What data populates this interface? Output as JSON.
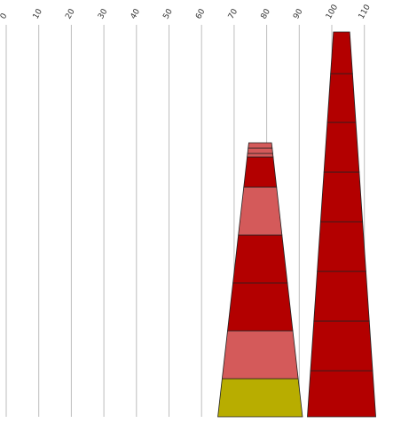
{
  "chart_data": {
    "type": "bar",
    "orientation": "vertical-stacked-tapered",
    "title": "",
    "xlabel": "",
    "ylabel": "",
    "axis": {
      "min": 0,
      "max": 110,
      "ticks": [
        0,
        10,
        20,
        30,
        40,
        50,
        60,
        70,
        80,
        90,
        100,
        110
      ],
      "tick_labels": [
        "0",
        "10",
        "20",
        "30",
        "40",
        "50",
        "60",
        "70",
        "80",
        "90",
        "100",
        "110"
      ],
      "grid": true
    },
    "colors": {
      "dark_red": "#b30000",
      "light_red": "#d45a5a",
      "olive": "#b8ad00",
      "grid": "#bdbdbd",
      "outline": "#222222"
    },
    "stacks": [
      {
        "center": 78,
        "base_width": 26,
        "top_width": 7,
        "segments": [
          {
            "value": 43,
            "color": "olive"
          },
          {
            "value": 54,
            "color": "light_red"
          },
          {
            "value": 54,
            "color": "dark_red"
          },
          {
            "value": 54,
            "color": "dark_red"
          },
          {
            "value": 54,
            "color": "light_red"
          },
          {
            "value": 34,
            "color": "dark_red"
          },
          {
            "value": 4,
            "color": "light_red"
          },
          {
            "value": 6,
            "color": "light_red"
          },
          {
            "value": 6,
            "color": "light_red"
          }
        ]
      },
      {
        "center": 103,
        "base_width": 21,
        "top_width": 5,
        "segments": [
          {
            "value": 52,
            "color": "dark_red"
          },
          {
            "value": 56,
            "color": "dark_red"
          },
          {
            "value": 56,
            "color": "dark_red"
          },
          {
            "value": 56,
            "color": "dark_red"
          },
          {
            "value": 56,
            "color": "dark_red"
          },
          {
            "value": 56,
            "color": "dark_red"
          },
          {
            "value": 55,
            "color": "dark_red"
          },
          {
            "value": 47,
            "color": "dark_red"
          }
        ]
      }
    ]
  }
}
